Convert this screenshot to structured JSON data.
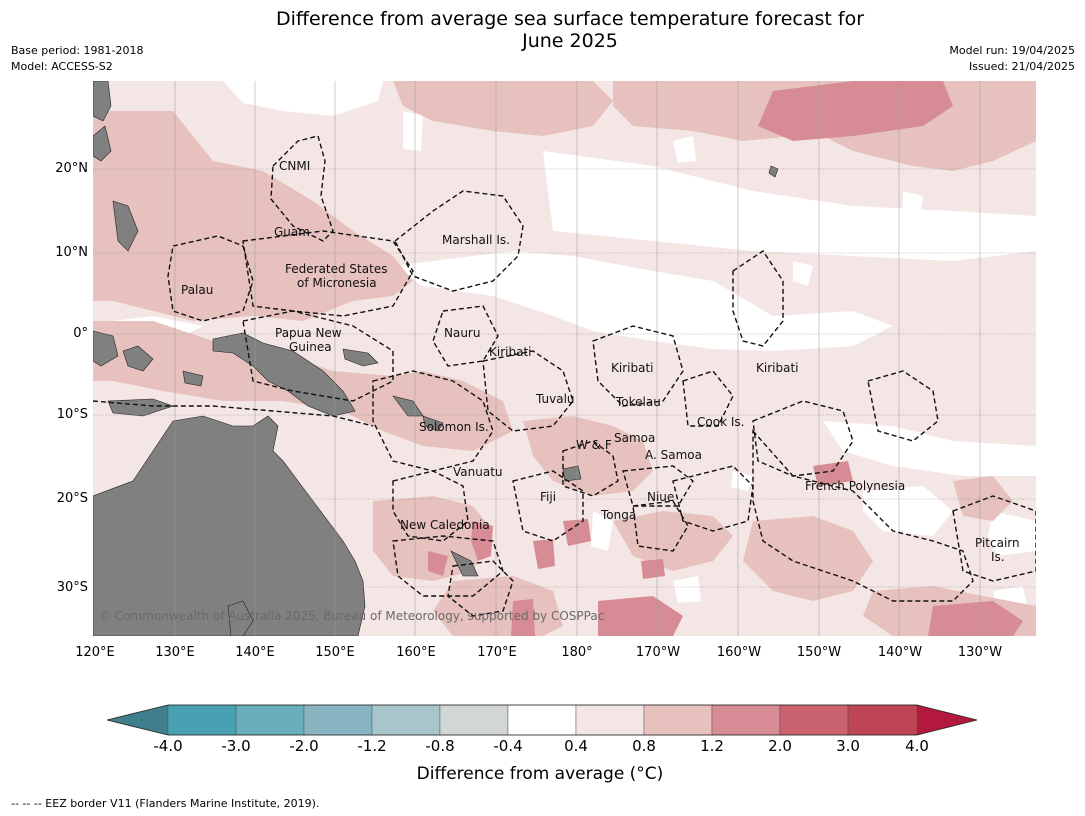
{
  "title_line1": "Difference from average sea surface temperature forecast for",
  "title_line2": "June 2025",
  "meta_left": {
    "base_period": "Base period: 1981-2018",
    "model": "Model: ACCESS-S2"
  },
  "meta_right": {
    "model_run": "Model run: 19/04/2025",
    "issued": "Issued: 21/04/2025"
  },
  "lat_ticks": [
    "20°N",
    "10°N",
    "0°",
    "10°S",
    "20°S",
    "30°S"
  ],
  "lon_ticks": [
    "120°E",
    "130°E",
    "140°E",
    "150°E",
    "160°E",
    "170°E",
    "180°",
    "170°W",
    "160°W",
    "150°W",
    "140°W",
    "130°W"
  ],
  "region_labels": {
    "cnmi": "CNMI",
    "guam": "Guam",
    "marshall": "Marshall Is.",
    "fsm_1": "Federated States",
    "fsm_2": "of Micronesia",
    "palau": "Palau",
    "nauru": "Nauru",
    "png_1": "Papua New",
    "png_2": "Guinea",
    "kiribati_w": "Kiribati",
    "kiribati_c": "Kiribati",
    "kiribati_e": "Kiribati",
    "tuvalu": "Tuvalu",
    "tokelau": "Tokelau",
    "cook": "Cook Is.",
    "solomon": "Solomon Is.",
    "wf": "W & F",
    "samoa": "Samoa",
    "asamoa": "A. Samoa",
    "vanuatu": "Vanuatu",
    "fiji": "Fiji",
    "niue": "Niue",
    "tonga": "Tonga",
    "newcal": "New Caledonia",
    "frpoly": "French Polynesia",
    "pitcairn_1": "Pitcairn",
    "pitcairn_2": "Is."
  },
  "copyright": "© Commonwealth of Australia 2025, Bureau of Meteorology, supported by COSPPac",
  "colorbar": {
    "colors": [
      "#3f7f8c",
      "#4aa0b3",
      "#6aaebc",
      "#87b4c0",
      "#a7c6cb",
      "#d2d6d7",
      "#ffffff",
      "#f4e6e4",
      "#e6c1be",
      "#d78c95",
      "#cb6270",
      "#bf4456",
      "#b3193c"
    ],
    "ticks": [
      "-4.0",
      "-3.0",
      "-2.0",
      "-1.2",
      "-0.8",
      "-0.4",
      "0.4",
      "0.8",
      "1.2",
      "2.0",
      "3.0",
      "4.0"
    ],
    "label": "Difference from average (°C)"
  },
  "legend_note": "--  --  -- EEZ border V11 (Flanders Marine Institute, 2019)."
}
